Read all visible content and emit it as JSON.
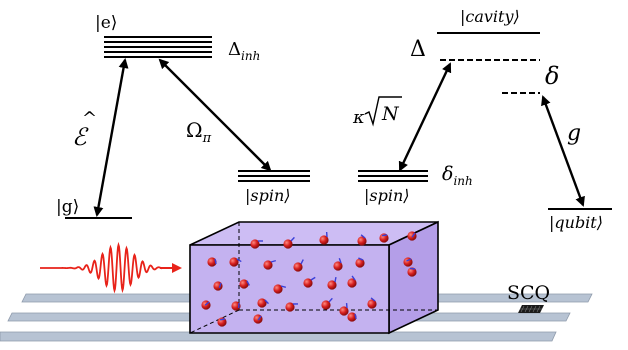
{
  "labels": {
    "excited": "|e⟩",
    "ground": "|g⟩",
    "delta_inh": "Δ",
    "delta_inh_sub": "inh",
    "probe_field": "ℰ",
    "rabi": "Ω",
    "rabi_sub": "π",
    "spin_left": "|spin⟩",
    "cavity": "|cavity⟩",
    "Delta": "Δ",
    "delta": "δ",
    "kappa_pre": "κ",
    "kappa_N": "N",
    "spin_right": "|spin⟩",
    "delta_inh_spin": "δ",
    "delta_inh_spin_sub": "inh",
    "coupling": "g",
    "qubit": "|qubit⟩",
    "scq": "SCQ"
  },
  "colors": {
    "pulse": "#e8231a",
    "crystal_fill": "#c4b2f0",
    "crystal_edge": "#000000",
    "waveguide": "#b7c3d3",
    "atom": "#d61f1f",
    "spin_arrow": "#3a3fd8",
    "chip": "#1a1a1a"
  }
}
